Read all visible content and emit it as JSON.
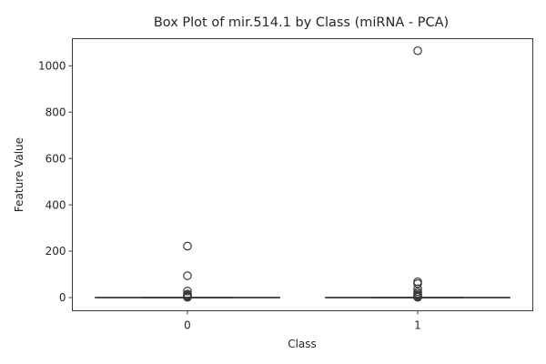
{
  "chart_data": {
    "type": "box",
    "title": "Box Plot of mir.514.1 by Class (miRNA - PCA)",
    "xlabel": "Class",
    "ylabel": "Feature Value",
    "categories": [
      "0",
      "1"
    ],
    "ylim": [
      -57,
      1117
    ],
    "yticks": [
      0,
      200,
      400,
      600,
      800,
      1000
    ],
    "grid": false,
    "box_color": "#3a3a3a",
    "boxes": [
      {
        "category": "0",
        "min": 0,
        "q1": 0,
        "median": 0,
        "q3": 0,
        "max": 0,
        "outliers": [
          222,
          94,
          28,
          15,
          10,
          6,
          3,
          1
        ]
      },
      {
        "category": "1",
        "min": 0,
        "q1": 0,
        "median": 0,
        "q3": 0,
        "max": 0,
        "outliers": [
          1065,
          68,
          60,
          38,
          25,
          18,
          12,
          8,
          4,
          1
        ]
      }
    ]
  }
}
